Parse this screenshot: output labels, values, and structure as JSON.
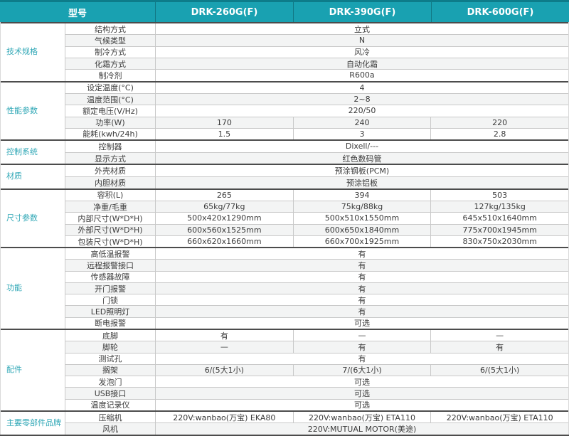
{
  "colors": {
    "header_bg": "#19a1b1",
    "header_top_border": "#0d7c8a",
    "accent_text": "#2fa7b6",
    "stripe": "#f3f4f4",
    "row_border": "#c9c9c9",
    "section_border": "#4c4c4c"
  },
  "table": {
    "header": {
      "model_label": "型号",
      "models": [
        "DRK-260G(F)",
        "DRK-390G(F)",
        "DRK-600G(F)"
      ]
    },
    "sections": [
      {
        "label": "技术规格",
        "rows": [
          {
            "param": "结构方式",
            "values": [
              "立式"
            ]
          },
          {
            "param": "气候类型",
            "values": [
              "N"
            ]
          },
          {
            "param": "制冷方式",
            "values": [
              "风冷"
            ]
          },
          {
            "param": "化霜方式",
            "values": [
              "自动化霜"
            ]
          },
          {
            "param": "制冷剂",
            "values": [
              "R600a"
            ]
          }
        ]
      },
      {
        "label": "性能参数",
        "rows": [
          {
            "param": "设定温度(°C)",
            "values": [
              "4"
            ]
          },
          {
            "param": "温度范围(°C)",
            "values": [
              "2~8"
            ]
          },
          {
            "param": "额定电压(V/Hz)",
            "values": [
              "220/50"
            ]
          },
          {
            "param": "功率(W)",
            "values": [
              "170",
              "240",
              "220"
            ]
          },
          {
            "param": "能耗(kwh/24h)",
            "values": [
              "1.5",
              "3",
              "2.8"
            ]
          }
        ]
      },
      {
        "label": "控制系统",
        "rows": [
          {
            "param": "控制器",
            "values": [
              "Dixell/---"
            ]
          },
          {
            "param": "显示方式",
            "values": [
              "红色数码管"
            ]
          }
        ]
      },
      {
        "label": "材质",
        "rows": [
          {
            "param": "外壳材质",
            "values": [
              "预涂钢板(PCM)"
            ]
          },
          {
            "param": "内胆材质",
            "values": [
              "预涂铝板"
            ]
          }
        ]
      },
      {
        "label": "尺寸参数",
        "rows": [
          {
            "param": "容积(L)",
            "values": [
              "265",
              "394",
              "503"
            ]
          },
          {
            "param": "净重/毛重",
            "values": [
              "65kg/77kg",
              "75kg/88kg",
              "127kg/135kg"
            ]
          },
          {
            "param": "内部尺寸(W*D*H)",
            "values": [
              "500x420x1290mm",
              "500x510x1550mm",
              "645x510x1640mm"
            ]
          },
          {
            "param": "外部尺寸(W*D*H)",
            "values": [
              "600x560x1525mm",
              "600x650x1840mm",
              "775x700x1945mm"
            ]
          },
          {
            "param": "包装尺寸(W*D*H)",
            "values": [
              "660x620x1660mm",
              "660x700x1925mm",
              "830x750x2030mm"
            ]
          }
        ]
      },
      {
        "label": "功能",
        "rows": [
          {
            "param": "高低温报警",
            "values": [
              "有"
            ]
          },
          {
            "param": "远程报警接口",
            "values": [
              "有"
            ]
          },
          {
            "param": "传感器故障",
            "values": [
              "有"
            ]
          },
          {
            "param": "开门报警",
            "values": [
              "有"
            ]
          },
          {
            "param": "门锁",
            "values": [
              "有"
            ]
          },
          {
            "param": "LED照明灯",
            "values": [
              "有"
            ]
          },
          {
            "param": "断电报警",
            "values": [
              "可选"
            ]
          }
        ]
      },
      {
        "label": "配件",
        "rows": [
          {
            "param": "底脚",
            "values": [
              "有",
              "—",
              "—"
            ]
          },
          {
            "param": "脚轮",
            "values": [
              "—",
              "有",
              "有"
            ]
          },
          {
            "param": "测试孔",
            "values": [
              "有"
            ]
          },
          {
            "param": "搁架",
            "values": [
              "6/(5大1小)",
              "7/(6大1小)",
              "6/(5大1小)"
            ]
          },
          {
            "param": "发泡门",
            "values": [
              "可选"
            ]
          },
          {
            "param": "USB接口",
            "values": [
              "可选"
            ]
          },
          {
            "param": "温度记录仪",
            "values": [
              "可选"
            ]
          }
        ]
      },
      {
        "label": "主要零部件品牌",
        "rows": [
          {
            "param": "压缩机",
            "values": [
              "220V:wanbao(万宝) EKA80",
              "220V:wanbao(万宝) ETA110",
              "220V:wanbao(万宝) ETA110"
            ]
          },
          {
            "param": "风机",
            "values": [
              "220V:MUTUAL MOTOR(美途)"
            ]
          }
        ]
      }
    ]
  }
}
